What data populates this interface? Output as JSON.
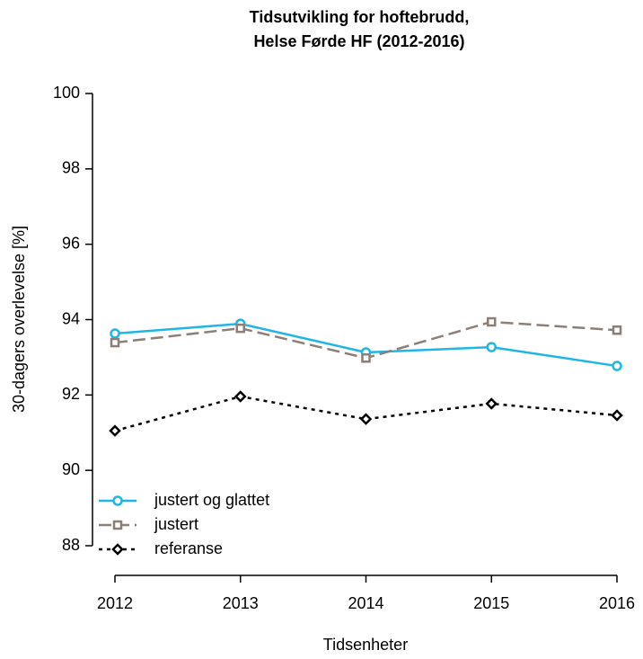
{
  "chart_data": {
    "type": "line",
    "title": [
      "Tidsutvikling for hoftebrudd,",
      "Helse Førde HF (2012-2016)"
    ],
    "xlabel": "Tidsenheter",
    "ylabel": "30-dagers overlevelse [%]",
    "x": [
      2012,
      2013,
      2014,
      2015,
      2016
    ],
    "xlim": [
      2012,
      2016
    ],
    "xticks": [
      2012,
      2013,
      2014,
      2015,
      2016
    ],
    "ylim": [
      88,
      100
    ],
    "yticks": [
      88,
      90,
      92,
      94,
      96,
      98,
      100
    ],
    "legend": "bottomleft",
    "series": [
      {
        "name": "justert og glattet",
        "color": "#1fb6e6",
        "marker": "circle",
        "dash": "solid",
        "values": [
          93.63,
          93.89,
          93.13,
          93.27,
          92.77
        ]
      },
      {
        "name": "justert",
        "color": "#8c7f77",
        "marker": "square",
        "dash": "dashed",
        "values": [
          93.39,
          93.77,
          92.98,
          93.94,
          93.72
        ]
      },
      {
        "name": "referanse",
        "color": "#000000",
        "marker": "diamond",
        "dash": "dotted",
        "values": [
          91.05,
          91.96,
          91.36,
          91.77,
          91.46
        ]
      }
    ]
  }
}
